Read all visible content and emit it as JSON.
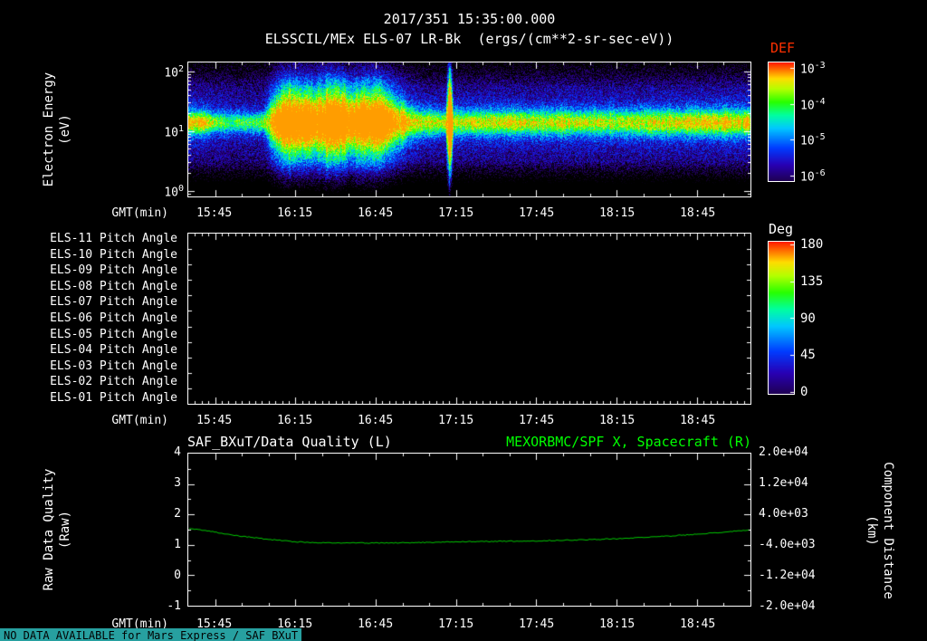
{
  "header": {
    "datetime": "2017/351 15:35:00.000",
    "title": "ELSSCIL/MEx ELS-07 LR-Bk  (ergs/(cm**2-sr-sec-eV))"
  },
  "time_axis": {
    "label": "GMT(min)",
    "start_time": "15:35",
    "ticks": [
      "15:45",
      "16:15",
      "16:45",
      "17:15",
      "17:45",
      "18:15",
      "18:45"
    ],
    "tick_minutes": [
      10,
      40,
      70,
      100,
      130,
      160,
      190
    ],
    "range_minutes": [
      0,
      210
    ]
  },
  "spectrogram": {
    "ylabel_line1": "Electron Energy",
    "ylabel_line2": "(eV)",
    "y_ticks": [
      {
        "b": "10",
        "e": "2"
      },
      {
        "b": "10",
        "e": "1"
      },
      {
        "b": "10",
        "e": "0"
      }
    ],
    "colorbar": {
      "label": "DEF",
      "label_color": "#ff3000",
      "ticks": [
        {
          "b": "10",
          "e": "-3"
        },
        {
          "b": "10",
          "e": "-4"
        },
        {
          "b": "10",
          "e": "-5"
        },
        {
          "b": "10",
          "e": "-6"
        }
      ]
    }
  },
  "pitch_panel": {
    "row_labels": [
      "ELS-11 Pitch Angle",
      "ELS-10 Pitch Angle",
      "ELS-09 Pitch Angle",
      "ELS-08 Pitch Angle",
      "ELS-07 Pitch Angle",
      "ELS-06 Pitch Angle",
      "ELS-05 Pitch Angle",
      "ELS-04 Pitch Angle",
      "ELS-03 Pitch Angle",
      "ELS-02 Pitch Angle",
      "ELS-01 Pitch Angle"
    ],
    "colorbar": {
      "label": "Deg",
      "ticks": [
        "180",
        "135",
        "90",
        "45",
        "0"
      ]
    }
  },
  "bottom_panel": {
    "title_left": "SAF_BXuT/Data Quality (L)",
    "title_right": "MEXORBMC/SPF X, Spacecraft (R)",
    "title_right_color": "#00ff00",
    "ylabel_left_line1": "Raw Data Quality",
    "ylabel_left_line2": "(Raw)",
    "ylabel_right_line1": "Component Distance",
    "ylabel_right_line2": "(km)",
    "left_ticks": [
      "4",
      "3",
      "2",
      "1",
      "0",
      "-1"
    ],
    "right_ticks": [
      "2.0e+04",
      "1.2e+04",
      "4.0e+03",
      "-4.0e+03",
      "-1.2e+04",
      "-2.0e+04"
    ]
  },
  "footer": {
    "no_data_message": "NO DATA AVAILABLE for Mars Express / SAF_BXuT",
    "bg_color": "#27a0a0",
    "text_color": "#000000"
  },
  "chart_data": [
    {
      "type": "heatmap",
      "name": "electron-energy-spectrogram",
      "title": "ELSSCIL/MEx ELS-07 LR-Bk (ergs/(cm**2-sr-sec-eV))",
      "xlabel": "GMT(min)",
      "ylabel": "Electron Energy (eV)",
      "x_range": [
        "15:35",
        "19:05"
      ],
      "x_tick_labels": [
        "15:45",
        "16:15",
        "16:45",
        "17:15",
        "17:45",
        "18:15",
        "18:45"
      ],
      "y_scale": "log",
      "y_range_ev": [
        0.8,
        140
      ],
      "z_label": "DEF",
      "z_units": "ergs/(cm**2-sr-sec-eV)",
      "z_scale": "log",
      "z_range": [
        1e-06,
        0.001
      ],
      "band_center_ev": 14,
      "amplitude_keyframes": {
        "minutes": [
          0,
          6,
          12,
          16,
          20,
          25,
          30,
          33,
          36,
          40,
          44,
          48,
          52,
          56,
          60,
          64,
          68,
          72,
          76,
          80,
          85,
          90,
          96,
          97.5,
          99,
          101,
          108,
          116,
          124,
          132,
          140,
          150,
          160,
          170,
          180,
          190,
          200,
          210
        ],
        "values": [
          0.6,
          0.58,
          0.42,
          0.36,
          0.4,
          0.38,
          0.52,
          0.72,
          0.8,
          0.74,
          0.82,
          0.7,
          0.78,
          0.82,
          0.72,
          0.8,
          0.74,
          0.82,
          0.7,
          0.6,
          0.54,
          0.5,
          0.5,
          0.88,
          0.52,
          0.5,
          0.52,
          0.5,
          0.52,
          0.5,
          0.52,
          0.5,
          0.48,
          0.5,
          0.52,
          0.54,
          0.55,
          0.57
        ]
      },
      "width_keyframes": {
        "minutes": [
          0,
          28,
          32,
          36,
          44,
          52,
          60,
          68,
          76,
          82,
          88,
          96,
          97.5,
          99,
          104,
          210
        ],
        "values": [
          0.12,
          0.11,
          0.26,
          0.34,
          0.3,
          0.35,
          0.3,
          0.34,
          0.26,
          0.17,
          0.13,
          0.12,
          0.6,
          0.13,
          0.13,
          0.14
        ]
      },
      "features": [
        "enhanced electron flux band near 10-20 eV across the whole interval",
        "bright bursty enhancements 16:08-16:55 reaching ~100 eV",
        "narrow intense spike near 17:13",
        "quieter uniform cyan band after 17:15",
        "dark low-flux regions below ~5 eV and above ~70 eV"
      ]
    },
    {
      "type": "heatmap",
      "name": "pitch-angle-panel",
      "rows": [
        "ELS-11",
        "ELS-10",
        "ELS-09",
        "ELS-08",
        "ELS-07",
        "ELS-06",
        "ELS-05",
        "ELS-04",
        "ELS-03",
        "ELS-02",
        "ELS-01"
      ],
      "values": [],
      "note": "panel is empty - no pitch angle data displayed",
      "colorbar_label": "Deg",
      "colorbar_range": [
        0,
        180
      ]
    },
    {
      "type": "line",
      "name": "spacecraft-x-distance",
      "xlabel": "GMT(min)",
      "series": [
        {
          "name": "MEXORBMC/SPF X, Spacecraft (R)",
          "axis": "right",
          "color": "#00c800",
          "x_minutes": [
            0,
            10,
            20,
            30,
            40,
            50,
            60,
            70,
            80,
            90,
            100,
            110,
            120,
            130,
            140,
            150,
            160,
            170,
            180,
            190,
            200,
            210
          ],
          "values_km": [
            400,
            -640,
            -1760,
            -2560,
            -3200,
            -3440,
            -3520,
            -3520,
            -3440,
            -3360,
            -3200,
            -3120,
            -3040,
            -2960,
            -2800,
            -2640,
            -2400,
            -2080,
            -1680,
            -1200,
            -640,
            0
          ]
        }
      ],
      "left_axis": {
        "label": "Raw Data Quality (Raw)",
        "range": [
          -1,
          4
        ],
        "series_plotted": "none - NO DATA AVAILABLE for Mars Express / SAF_BXuT"
      },
      "right_axis": {
        "label": "Component Distance (km)",
        "range": [
          -20000,
          20000
        ]
      }
    }
  ]
}
